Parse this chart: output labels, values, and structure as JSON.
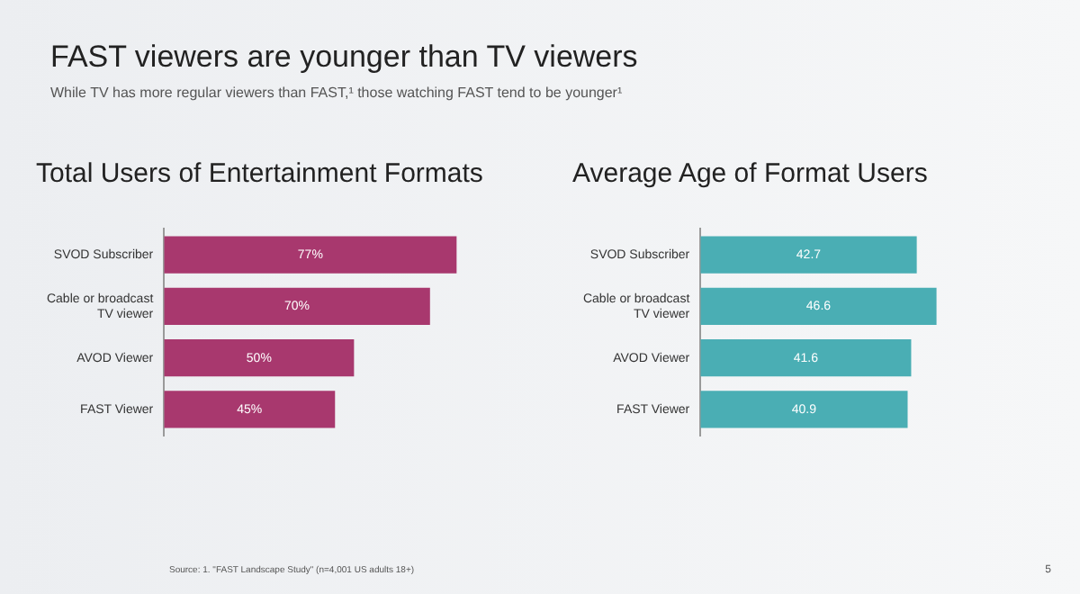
{
  "chart_data": [
    {
      "type": "other",
      "title": "FAST viewers are younger than TV viewers",
      "subtitle": "While TV has more regular viewers than FAST,¹ those watching FAST tend to be younger¹",
      "annotations": [
        "Source: 1. \"FAST Landscape Study\" (n=4,001 US adults 18+)",
        "5"
      ]
    },
    {
      "type": "bar",
      "orientation": "horizontal",
      "title": "Total Users of Entertainment Formats",
      "categories": [
        "SVOD Subscriber",
        "Cable or broadcast TV viewer",
        "AVOD Viewer",
        "FAST Viewer"
      ],
      "values": [
        77,
        70,
        50,
        45
      ],
      "value_labels": [
        "77%",
        "70%",
        "50%",
        "45%"
      ],
      "color": "#a8386e",
      "grid": false,
      "tick_labels": "y",
      "legend": false
    },
    {
      "type": "bar",
      "orientation": "horizontal",
      "title": "Average Age of Format Users",
      "categories": [
        "SVOD Subscriber",
        "Cable or broadcast TV viewer",
        "AVOD Viewer",
        "FAST Viewer"
      ],
      "values": [
        42.7,
        46.6,
        41.6,
        40.9
      ],
      "data_labels": true,
      "color": "#4aaeb4",
      "grid": false,
      "tick_labels": "y",
      "legend": false
    }
  ]
}
